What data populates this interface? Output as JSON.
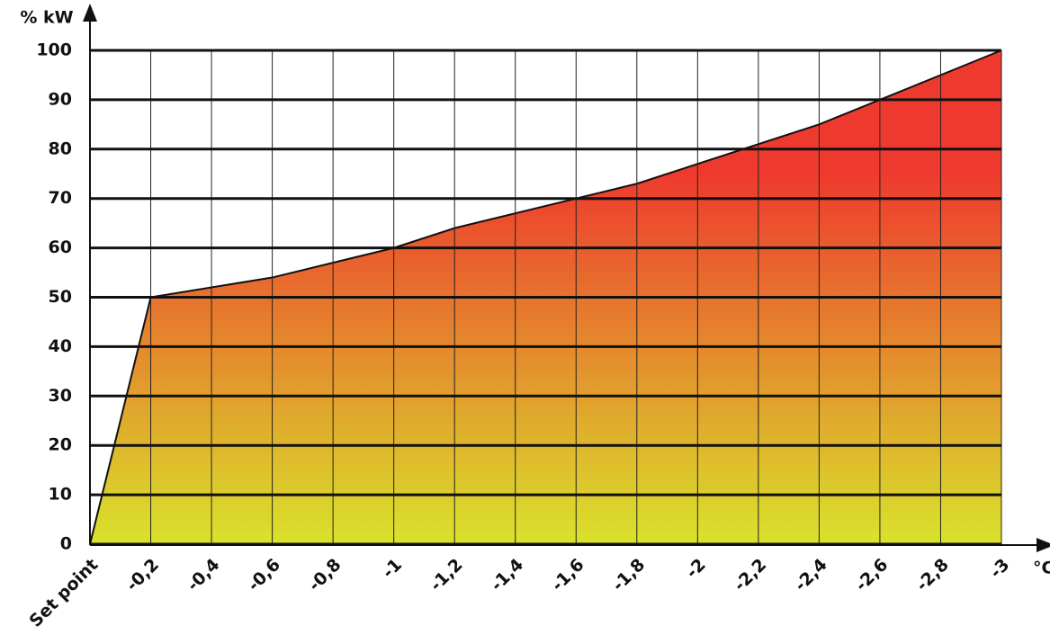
{
  "chart_data": {
    "type": "area",
    "y_label": "% kW",
    "x_label": "°C",
    "x": [
      0,
      -0.2,
      -0.6,
      -1,
      -1.2,
      -1.6,
      -1.8,
      -2.4,
      -3
    ],
    "values": [
      0,
      50,
      54,
      60,
      64,
      70,
      73,
      85,
      100
    ],
    "fill_gradient": [
      "#ee3a2e",
      "#d9e32c"
    ],
    "line_color": "#111111",
    "xlim": [
      0,
      -3
    ],
    "xticks": [
      {
        "value": 0,
        "label": "Set point"
      },
      {
        "value": -0.2,
        "label": "-0,2"
      },
      {
        "value": -0.4,
        "label": "-0,4"
      },
      {
        "value": -0.6,
        "label": "-0,6"
      },
      {
        "value": -0.8,
        "label": "-0,8"
      },
      -1,
      {
        "value": -1.2,
        "label": "-1,2"
      },
      {
        "value": -1.4,
        "label": "-1,4"
      },
      {
        "value": -1.6,
        "label": "-1,6"
      },
      {
        "value": -1.8,
        "label": "-1,8"
      },
      -2,
      {
        "value": -2.2,
        "label": "-2,2"
      },
      {
        "value": -2.4,
        "label": "-2,4"
      },
      {
        "value": -2.6,
        "label": "-2,6"
      },
      {
        "value": -2.8,
        "label": "-2,8"
      },
      -3
    ],
    "ylim": [
      0,
      100
    ],
    "yticks": [
      0,
      10,
      20,
      30,
      40,
      50,
      60,
      70,
      80,
      90,
      100
    ],
    "grid": true
  }
}
